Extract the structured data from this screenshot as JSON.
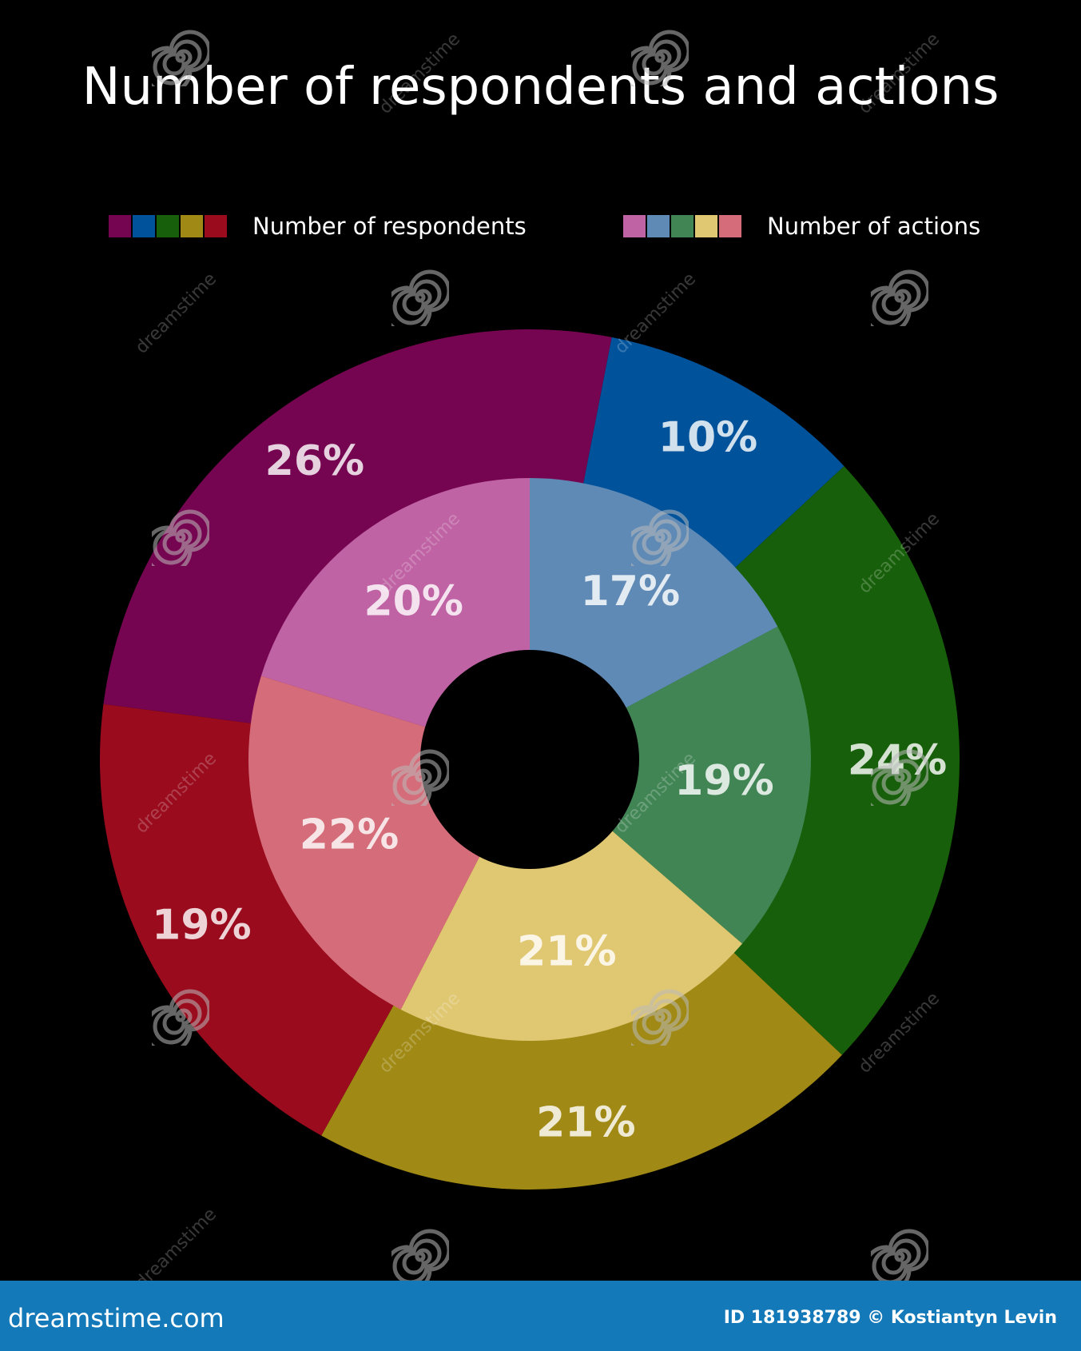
{
  "chart_data": {
    "type": "pie",
    "title": "Number of respondents and actions",
    "series": [
      {
        "name": "Number of respondents",
        "values": [
          10,
          24,
          21,
          19,
          26
        ],
        "labels": [
          "10%",
          "24%",
          "21%",
          "19%",
          "26%"
        ],
        "colors": [
          "#00529b",
          "#175f0a",
          "#a08914",
          "#990b1d",
          "#760551"
        ]
      },
      {
        "name": "Number of actions",
        "values": [
          17,
          19,
          21,
          22,
          20
        ],
        "labels": [
          "17%",
          "19%",
          "21%",
          "22%",
          "20%"
        ],
        "colors": [
          "#5e8ab5",
          "#418555",
          "#e0c772",
          "#d46c79",
          "#bf63a4"
        ]
      }
    ],
    "legend_position": "top",
    "grid": false
  },
  "legend": {
    "left_label": "Number of respondents",
    "right_label": "Number of actions"
  },
  "watermark": {
    "text": "dreamstime",
    "icon": "spiral-logo-icon"
  },
  "footer": {
    "brand": "dreamstime.com",
    "credit": "ID 181938789 © Kostiantyn Levin",
    "background": "#1479b8"
  }
}
